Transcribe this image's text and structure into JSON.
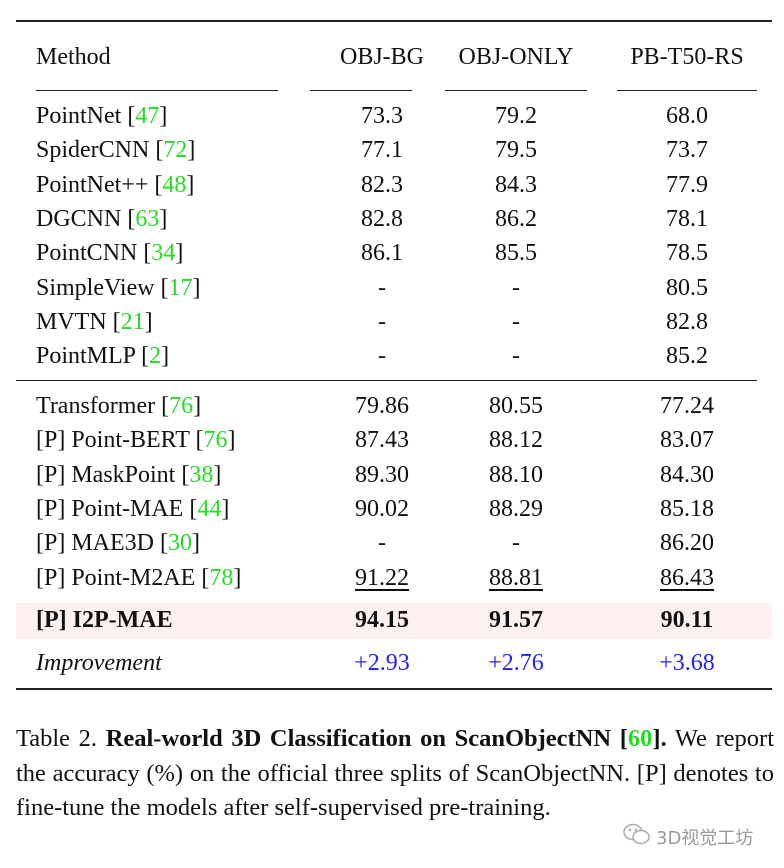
{
  "table": {
    "headers": [
      "Method",
      "OBJ-BG",
      "OBJ-ONLY",
      "PB-T50-RS"
    ],
    "group1": [
      {
        "method": "PointNet",
        "cite": "47",
        "v": [
          "73.3",
          "79.2",
          "68.0"
        ]
      },
      {
        "method": "SpiderCNN",
        "cite": "72",
        "v": [
          "77.1",
          "79.5",
          "73.7"
        ]
      },
      {
        "method": "PointNet++",
        "cite": "48",
        "v": [
          "82.3",
          "84.3",
          "77.9"
        ]
      },
      {
        "method": "DGCNN",
        "cite": "63",
        "v": [
          "82.8",
          "86.2",
          "78.1"
        ]
      },
      {
        "method": "PointCNN",
        "cite": "34",
        "v": [
          "86.1",
          "85.5",
          "78.5"
        ]
      },
      {
        "method": "SimpleView",
        "cite": "17",
        "v": [
          "-",
          "-",
          "80.5"
        ]
      },
      {
        "method": "MVTN",
        "cite": "21",
        "v": [
          "-",
          "-",
          "82.8"
        ]
      },
      {
        "method": "PointMLP",
        "cite": "2",
        "v": [
          "-",
          "-",
          "85.2"
        ]
      }
    ],
    "group2": [
      {
        "method": "Transformer",
        "cite": "76",
        "v": [
          "79.86",
          "80.55",
          "77.24"
        ]
      },
      {
        "method": "[P] Point-BERT",
        "cite": "76",
        "v": [
          "87.43",
          "88.12",
          "83.07"
        ]
      },
      {
        "method": "[P] MaskPoint",
        "cite": "38",
        "v": [
          "89.30",
          "88.10",
          "84.30"
        ]
      },
      {
        "method": "[P] Point-MAE",
        "cite": "44",
        "v": [
          "90.02",
          "88.29",
          "85.18"
        ]
      },
      {
        "method": "[P] MAE3D",
        "cite": "30",
        "v": [
          "-",
          "-",
          "86.20"
        ]
      },
      {
        "method": "[P] Point-M2AE",
        "cite": "78",
        "v": [
          "91.22",
          "88.81",
          "86.43"
        ],
        "underline": true
      }
    ],
    "ours": {
      "method": "[P] I2P-MAE",
      "v": [
        "94.15",
        "91.57",
        "90.11"
      ]
    },
    "improvement": {
      "label": "Improvement",
      "v": [
        "+2.93",
        "+2.76",
        "+3.68"
      ]
    }
  },
  "caption": {
    "prefix": "Table 2. ",
    "title": "Real-world 3D Classification on ScanObjectNN ",
    "cite": "60",
    "title_end": ".",
    "body": " We report the accuracy (%) on the official three splits of ScanObjectNN. [P] denotes to fine-tune the models after self-supervised pre-training."
  },
  "watermark": "3D视觉工坊",
  "colors": {
    "cite": "#22dd22",
    "improvement": "#2222ee",
    "highlight": "#fdf0f0"
  }
}
